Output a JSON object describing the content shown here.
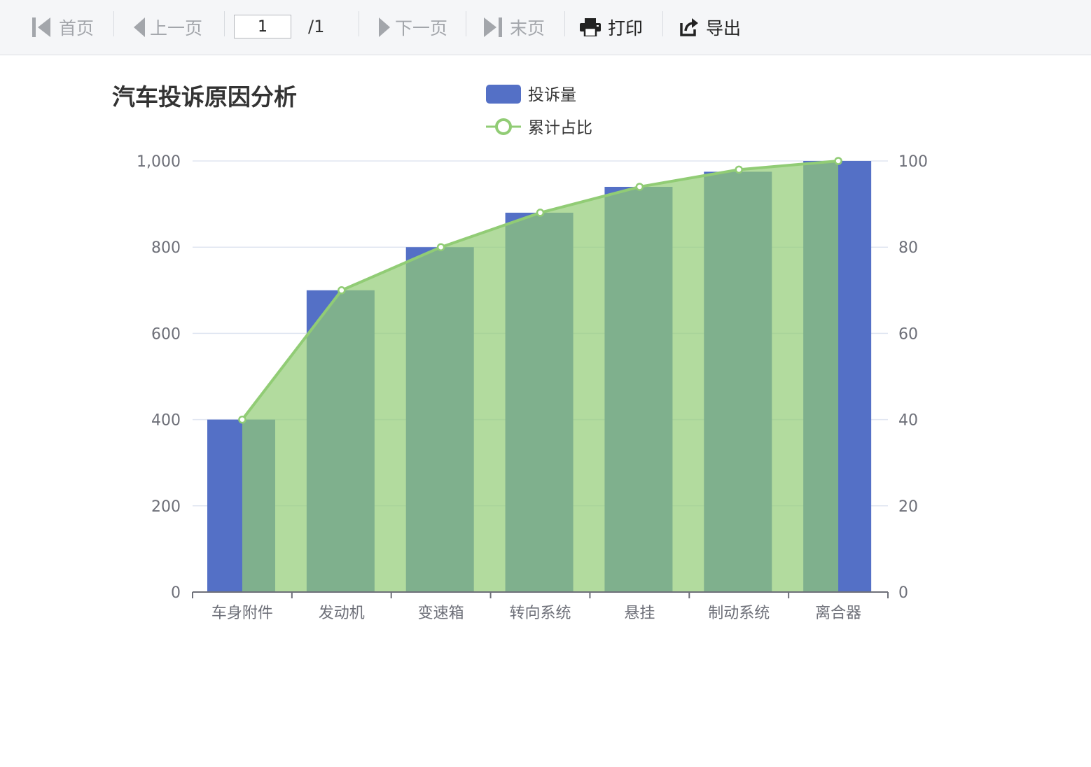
{
  "toolbar": {
    "first_label": "首页",
    "prev_label": "上一页",
    "page_value": "1",
    "page_total": "/1",
    "next_label": "下一页",
    "last_label": "末页",
    "print_label": "打印",
    "export_label": "导出"
  },
  "chart_data": {
    "type": "bar",
    "title": "汽车投诉原因分析",
    "categories": [
      "车身附件",
      "发动机",
      "变速箱",
      "转向系统",
      "悬挂",
      "制动系统",
      "离合器"
    ],
    "series": [
      {
        "name": "投诉量",
        "type": "bar",
        "axis": "left",
        "color": "#5470c6",
        "values": [
          400,
          700,
          800,
          880,
          940,
          975,
          1000
        ]
      },
      {
        "name": "累计占比",
        "type": "area",
        "axis": "right",
        "color": "#91cc75",
        "values": [
          40,
          70,
          80,
          88,
          94,
          98,
          100
        ]
      }
    ],
    "y_left": {
      "min": 0,
      "max": 1000,
      "ticks": [
        "0",
        "200",
        "400",
        "600",
        "800",
        "1,000"
      ]
    },
    "y_right": {
      "min": 0,
      "max": 100,
      "ticks": [
        "0",
        "20",
        "40",
        "60",
        "80",
        "100"
      ]
    },
    "grid": true,
    "legend_position": "top-center"
  }
}
